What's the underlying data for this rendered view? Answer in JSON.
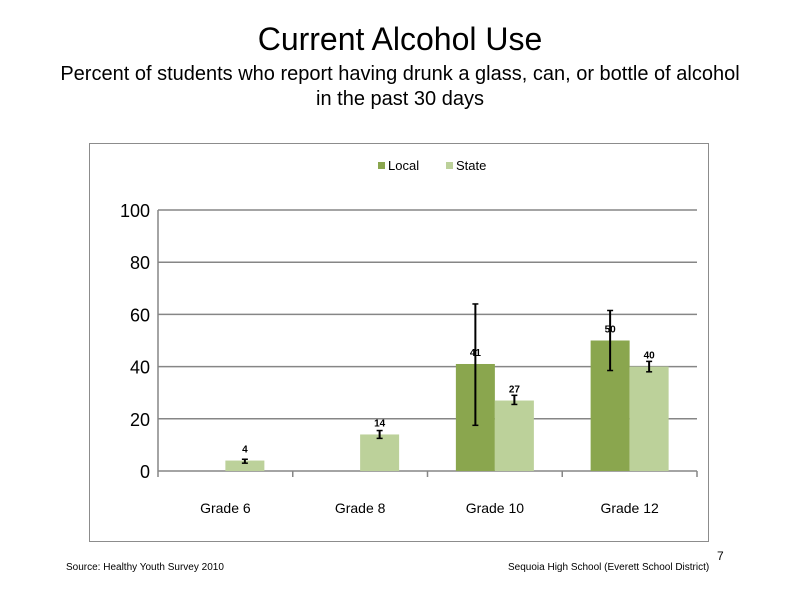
{
  "slide": {
    "title": "Current Alcohol Use",
    "subtitle": "Percent of students who report having drunk a glass, can, or bottle of alcohol in the past 30 days",
    "source": "Source: Healthy Youth Survey 2010",
    "footer_right": "Sequoia High School (Everett School District)",
    "page_number": "7"
  },
  "chart_data": {
    "type": "bar",
    "title": "",
    "xlabel": "",
    "ylabel": "",
    "ylim": [
      0,
      100
    ],
    "yticks": [
      0,
      20,
      40,
      60,
      80,
      100
    ],
    "grid": true,
    "legend_position": "top",
    "categories": [
      "Grade 6",
      "Grade 8",
      "Grade 10",
      "Grade 12"
    ],
    "series": [
      {
        "name": "Local",
        "color": "#8aa64e",
        "values": [
          null,
          null,
          41,
          50
        ],
        "labels": [
          "",
          "",
          "41",
          "50"
        ],
        "error_low": [
          null,
          null,
          17.5,
          38.5
        ],
        "error_high": [
          null,
          null,
          64,
          61.5
        ]
      },
      {
        "name": "State",
        "color": "#bcd19a",
        "values": [
          4,
          14,
          27,
          40
        ],
        "labels": [
          "4",
          "14",
          "27",
          "40"
        ],
        "error_low": [
          3,
          12.5,
          25.5,
          38
        ],
        "error_high": [
          4.5,
          15.5,
          29,
          42
        ]
      }
    ]
  }
}
